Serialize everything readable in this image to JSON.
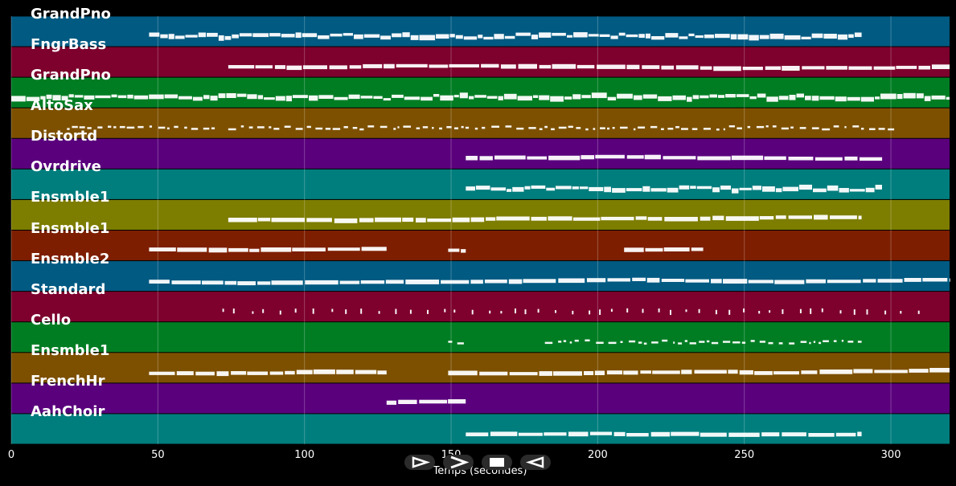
{
  "chart_data": {
    "type": "piano-roll",
    "xlabel": "Temps (secondes)",
    "xlim": [
      0,
      320
    ],
    "xticks": [
      0,
      50,
      100,
      150,
      200,
      250,
      300
    ],
    "grid": true,
    "tracks": [
      {
        "name": "GrandPno",
        "color": "#005a82",
        "segments": [
          [
            47,
            290
          ]
        ],
        "style": "dense"
      },
      {
        "name": "FngrBass",
        "color": "#7d002d",
        "segments": [
          [
            74,
            320
          ]
        ],
        "style": "steps"
      },
      {
        "name": "GrandPno",
        "color": "#007d23",
        "segments": [
          [
            0,
            320
          ]
        ],
        "style": "dense"
      },
      {
        "name": "AltoSax",
        "color": "#7d5000",
        "segments": [
          [
            19,
            70
          ],
          [
            74,
            302
          ]
        ],
        "style": "dots"
      },
      {
        "name": "Distortd",
        "color": "#5a007d",
        "segments": [
          [
            155,
            297
          ]
        ],
        "style": "steps"
      },
      {
        "name": "Ovrdrive",
        "color": "#007d7d",
        "segments": [
          [
            155,
            297
          ]
        ],
        "style": "dense"
      },
      {
        "name": "Ensmble1",
        "color": "#7d7d00",
        "segments": [
          [
            74,
            290
          ]
        ],
        "style": "steps"
      },
      {
        "name": "Ensmble1",
        "color": "#7d1e00",
        "segments": [
          [
            47,
            128
          ],
          [
            149,
            155
          ],
          [
            209,
            236
          ]
        ],
        "style": "steps"
      },
      {
        "name": "Ensmble2",
        "color": "#005a82",
        "segments": [
          [
            47,
            320
          ]
        ],
        "style": "steps"
      },
      {
        "name": "Standard",
        "color": "#7d002d",
        "segments": [
          [
            72,
            310
          ]
        ],
        "style": "ticks"
      },
      {
        "name": "Cello",
        "color": "#007d23",
        "segments": [
          [
            149,
            155
          ],
          [
            182,
            290
          ]
        ],
        "style": "dots"
      },
      {
        "name": "Ensmble1",
        "color": "#7d5000",
        "segments": [
          [
            47,
            128
          ],
          [
            149,
            320
          ]
        ],
        "style": "steps"
      },
      {
        "name": "FrenchHr",
        "color": "#5a007d",
        "segments": [
          [
            128,
            155
          ]
        ],
        "style": "steps"
      },
      {
        "name": "AahChoir",
        "color": "#007d7d",
        "segments": [
          [
            155,
            290
          ]
        ],
        "style": "steps"
      }
    ]
  },
  "controls": {
    "play_label": "play",
    "forward_label": "forward",
    "stop_label": "stop",
    "back_label": "rewind"
  }
}
